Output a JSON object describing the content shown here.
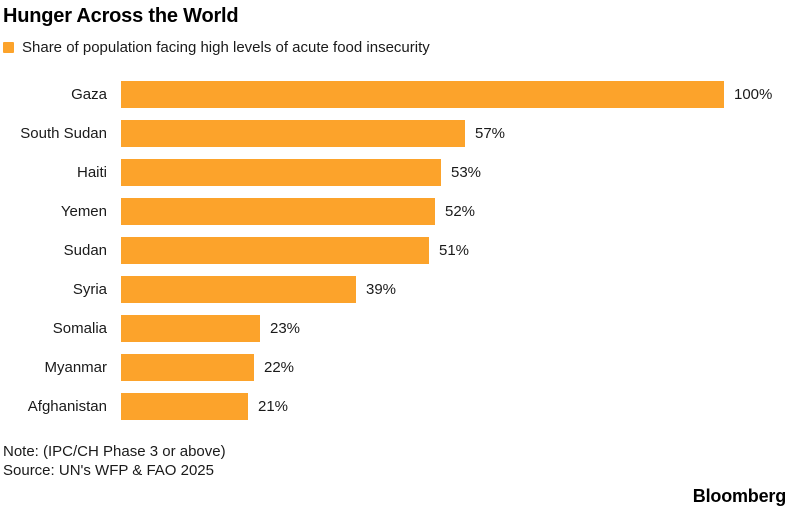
{
  "title": "Hunger Across the World",
  "legend": {
    "label": "Share of population facing high levels of acute food insecurity",
    "swatch_color": "#FCA32B"
  },
  "chart_data": {
    "type": "bar",
    "orientation": "horizontal",
    "title": "Hunger Across the World",
    "series_label": "Share of population facing high levels of acute food insecurity",
    "categories": [
      "Gaza",
      "South Sudan",
      "Haiti",
      "Yemen",
      "Sudan",
      "Syria",
      "Somalia",
      "Myanmar",
      "Afghanistan"
    ],
    "values": [
      100,
      57,
      53,
      52,
      51,
      39,
      23,
      22,
      21
    ],
    "value_labels": [
      "100%",
      "57%",
      "53%",
      "52%",
      "51%",
      "39%",
      "23%",
      "22%",
      "21%"
    ],
    "xlabel": "",
    "ylabel": "",
    "xlim": [
      0,
      100
    ],
    "grid": false,
    "bar_color": "#FCA32B",
    "legend_position": "top-left"
  },
  "footer": {
    "note": "Note: (IPC/CH Phase 3 or above)",
    "source": "Source: UN's WFP & FAO 2025",
    "brand": "Bloomberg"
  }
}
